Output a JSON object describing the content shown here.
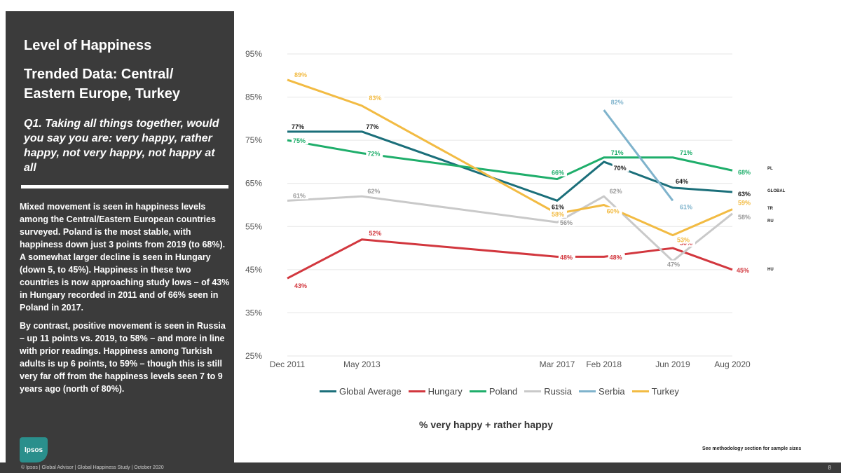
{
  "panel": {
    "title": "Level of Happiness",
    "subtitle": "Trended Data: Central/ Eastern Europe, Turkey",
    "question": "Q1. Taking all things together, would you say you are: very happy, rather happy, not very happy, not happy at all",
    "body1": "Mixed movement is seen in happiness levels among the Central/Eastern European countries surveyed. Poland is the most stable, with happiness down just 3 points from 2019 (to 68%). A somewhat larger decline is seen in Hungary (down 5, to 45%). Happiness in these two countries is now approaching study lows – of 43% in Hungary recorded in 2011 and of 66% seen in Poland in 2017.",
    "body2": "By contrast, positive movement is seen in Russia – up 11 points vs. 2019, to 58% – and more in line with prior readings. Happiness among Turkish adults is up 6 points, to 59% – though this is still very far off from the happiness levels seen 7 to 9 years ago (north of 80%).",
    "logo_text": "Ipsos"
  },
  "footer": {
    "text": "© Ipsos | Global Advisor | Global Happiness Study | October 2020",
    "page": "8",
    "method_note": "See methodology section for sample sizes"
  },
  "chart_data": {
    "type": "line",
    "title": "% very happy + rather happy",
    "xlabel": "",
    "ylabel": "",
    "x": [
      2011.92,
      2013.37,
      2017.17,
      2018.08,
      2019.42,
      2020.58
    ],
    "categories": [
      "Dec 2011",
      "May 2013",
      "Mar 2017",
      "Feb 2018",
      "Jun 2019",
      "Aug 2020"
    ],
    "ylim": [
      25,
      95
    ],
    "yticks": [
      "25%",
      "35%",
      "45%",
      "55%",
      "65%",
      "75%",
      "85%",
      "95%"
    ],
    "yticks_values": [
      25,
      35,
      45,
      55,
      65,
      75,
      85,
      95
    ],
    "grid": true,
    "series": [
      {
        "name": "Global Average",
        "short": "GLOBAL",
        "color": "#1b6f7a",
        "values": [
          77,
          77,
          61,
          70,
          64,
          63
        ],
        "labels": [
          "77%",
          "77%",
          "61%",
          "70%",
          "64%",
          "63%"
        ]
      },
      {
        "name": "Hungary",
        "short": "HU",
        "color": "#d2373e",
        "values": [
          43,
          52,
          48,
          48,
          50,
          45
        ],
        "labels": [
          "43%",
          "52%",
          "48%",
          "48%",
          "50%",
          "45%"
        ]
      },
      {
        "name": "Poland",
        "short": "PL",
        "color": "#1fae6b",
        "values": [
          75,
          72,
          66,
          71,
          71,
          68
        ],
        "labels": [
          "75%",
          "72%",
          "66%",
          "71%",
          "71%",
          "68%"
        ]
      },
      {
        "name": "Russia",
        "short": "RU",
        "color": "#c9c9c9",
        "values": [
          61,
          62,
          56,
          62,
          47,
          58
        ],
        "labels": [
          "61%",
          "62%",
          "56%",
          "62%",
          "47%",
          "58%"
        ]
      },
      {
        "name": "Serbia",
        "short": "",
        "color": "#7fb3cc",
        "values": [
          null,
          null,
          null,
          82,
          61,
          null
        ],
        "labels": [
          "",
          "",
          "",
          "82%",
          "61%",
          ""
        ]
      },
      {
        "name": "Turkey",
        "short": "TR",
        "color": "#f2bb43",
        "values": [
          89,
          83,
          58,
          60,
          53,
          59
        ],
        "labels": [
          "89%",
          "83%",
          "58%",
          "60%",
          "53%",
          "59%"
        ]
      }
    ]
  }
}
